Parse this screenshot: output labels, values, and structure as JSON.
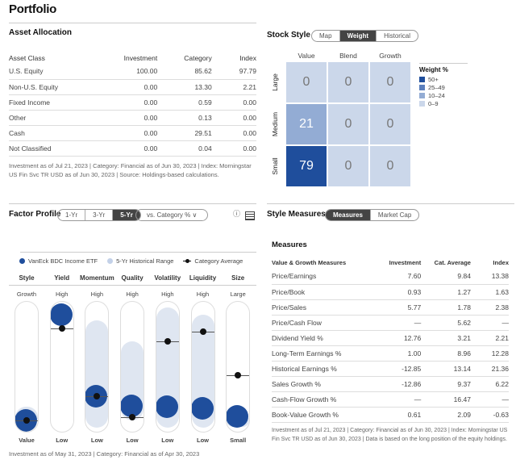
{
  "page_title": "Portfolio",
  "asset_allocation": {
    "title": "Asset Allocation",
    "headers": [
      "Asset Class",
      "Investment",
      "Category",
      "Index"
    ],
    "rows": [
      [
        "U.S. Equity",
        "100.00",
        "85.62",
        "97.79"
      ],
      [
        "Non-U.S. Equity",
        "0.00",
        "13.30",
        "2.21"
      ],
      [
        "Fixed Income",
        "0.00",
        "0.59",
        "0.00"
      ],
      [
        "Other",
        "0.00",
        "0.13",
        "0.00"
      ],
      [
        "Cash",
        "0.00",
        "29.51",
        "0.00"
      ],
      [
        "Not Classified",
        "0.00",
        "0.04",
        "0.00"
      ]
    ],
    "note": "Investment as of Jul 21, 2023 | Category: Financial as of Jun 30, 2023 | Index: Morningstar US Fin Svc TR USD as of Jun 30, 2023 | Source: Holdings-based calculations."
  },
  "stock_style": {
    "title": "Stock Style",
    "tabs": [
      "Map",
      "Weight",
      "Historical"
    ],
    "active_tab": "Weight",
    "columns": [
      "Value",
      "Blend",
      "Growth"
    ],
    "rows": [
      "Large",
      "Medium",
      "Small"
    ],
    "grid": [
      [
        0,
        0,
        0
      ],
      [
        21,
        0,
        0
      ],
      [
        79,
        0,
        0
      ]
    ],
    "legend_title": "Weight %",
    "legend": [
      {
        "label": "50+",
        "color": "#1f4e9c"
      },
      {
        "label": "25–49",
        "color": "#5b7fbd"
      },
      {
        "label": "10–24",
        "color": "#93acd4"
      },
      {
        "label": "0–9",
        "color": "#cbd7ea"
      }
    ]
  },
  "factor_profile": {
    "title": "Factor Profile",
    "periods": [
      "1-Yr",
      "3-Yr",
      "5-Yr"
    ],
    "active_period": "5-Yr",
    "compare_dropdown": "vs. Category % ∨",
    "info_icon": "info-icon",
    "table_icon": "table-icon",
    "legend": [
      "VanEck BDC Income ETF",
      "5-Yr Historical Range",
      "Category Average"
    ],
    "colors": {
      "fund": "#1f4e9c",
      "range": "#dfe6f1",
      "avg": "#111111"
    },
    "factors": [
      {
        "name": "Style",
        "high": "Growth",
        "low": "Value",
        "fund": 0.1,
        "avg": 0.1,
        "range": [
          0.04,
          0.2
        ]
      },
      {
        "name": "Yield",
        "high": "High",
        "low": "Low",
        "fund": 0.9,
        "avg": 0.8,
        "range": null
      },
      {
        "name": "Momentum",
        "high": "High",
        "low": "Low",
        "fund": 0.28,
        "avg": 0.28,
        "range": [
          0.04,
          0.86
        ]
      },
      {
        "name": "Quality",
        "high": "High",
        "low": "Low",
        "fund": 0.21,
        "avg": 0.12,
        "range": [
          0.1,
          0.7
        ]
      },
      {
        "name": "Volatility",
        "high": "High",
        "low": "Low",
        "fund": 0.2,
        "avg": 0.7,
        "range": [
          0.04,
          0.96
        ]
      },
      {
        "name": "Liquidity",
        "high": "High",
        "low": "Low",
        "fund": 0.19,
        "avg": 0.77,
        "range": [
          0.04,
          0.9
        ]
      },
      {
        "name": "Size",
        "high": "Large",
        "low": "Small",
        "fund": 0.13,
        "avg": 0.44,
        "range": [
          0.05,
          0.14
        ]
      }
    ],
    "note": "Investment as of May 31, 2023 | Category: Financial as of Apr 30, 2023"
  },
  "style_measures": {
    "title": "Style Measures",
    "tabs": [
      "Measures",
      "Market Cap"
    ],
    "active_tab": "Measures",
    "subtitle": "Measures",
    "headers": [
      "Value & Growth Measures",
      "Investment",
      "Cat. Average",
      "Index"
    ],
    "rows": [
      [
        "Price/Earnings",
        "7.60",
        "9.84",
        "13.38"
      ],
      [
        "Price/Book",
        "0.93",
        "1.27",
        "1.63"
      ],
      [
        "Price/Sales",
        "5.77",
        "1.78",
        "2.38"
      ],
      [
        "Price/Cash Flow",
        "—",
        "5.62",
        "—"
      ],
      [
        "Dividend Yield %",
        "12.76",
        "3.21",
        "2.21"
      ],
      [
        "Long-Term Earnings %",
        "1.00",
        "8.96",
        "12.28"
      ],
      [
        "Historical Earnings %",
        "-12.85",
        "13.14",
        "21.36"
      ],
      [
        "Sales Growth %",
        "-12.86",
        "9.37",
        "6.22"
      ],
      [
        "Cash-Flow Growth %",
        "—",
        "16.47",
        "—"
      ],
      [
        "Book-Value Growth %",
        "0.61",
        "2.09",
        "-0.63"
      ]
    ],
    "note": "Investment as of Jul 21, 2023 | Category: Financial as of Jun 30, 2023 | Index: Morningstar US Fin Svc TR USD as of Jun 30, 2023 | Data is based on the long position of the equity holdings."
  }
}
